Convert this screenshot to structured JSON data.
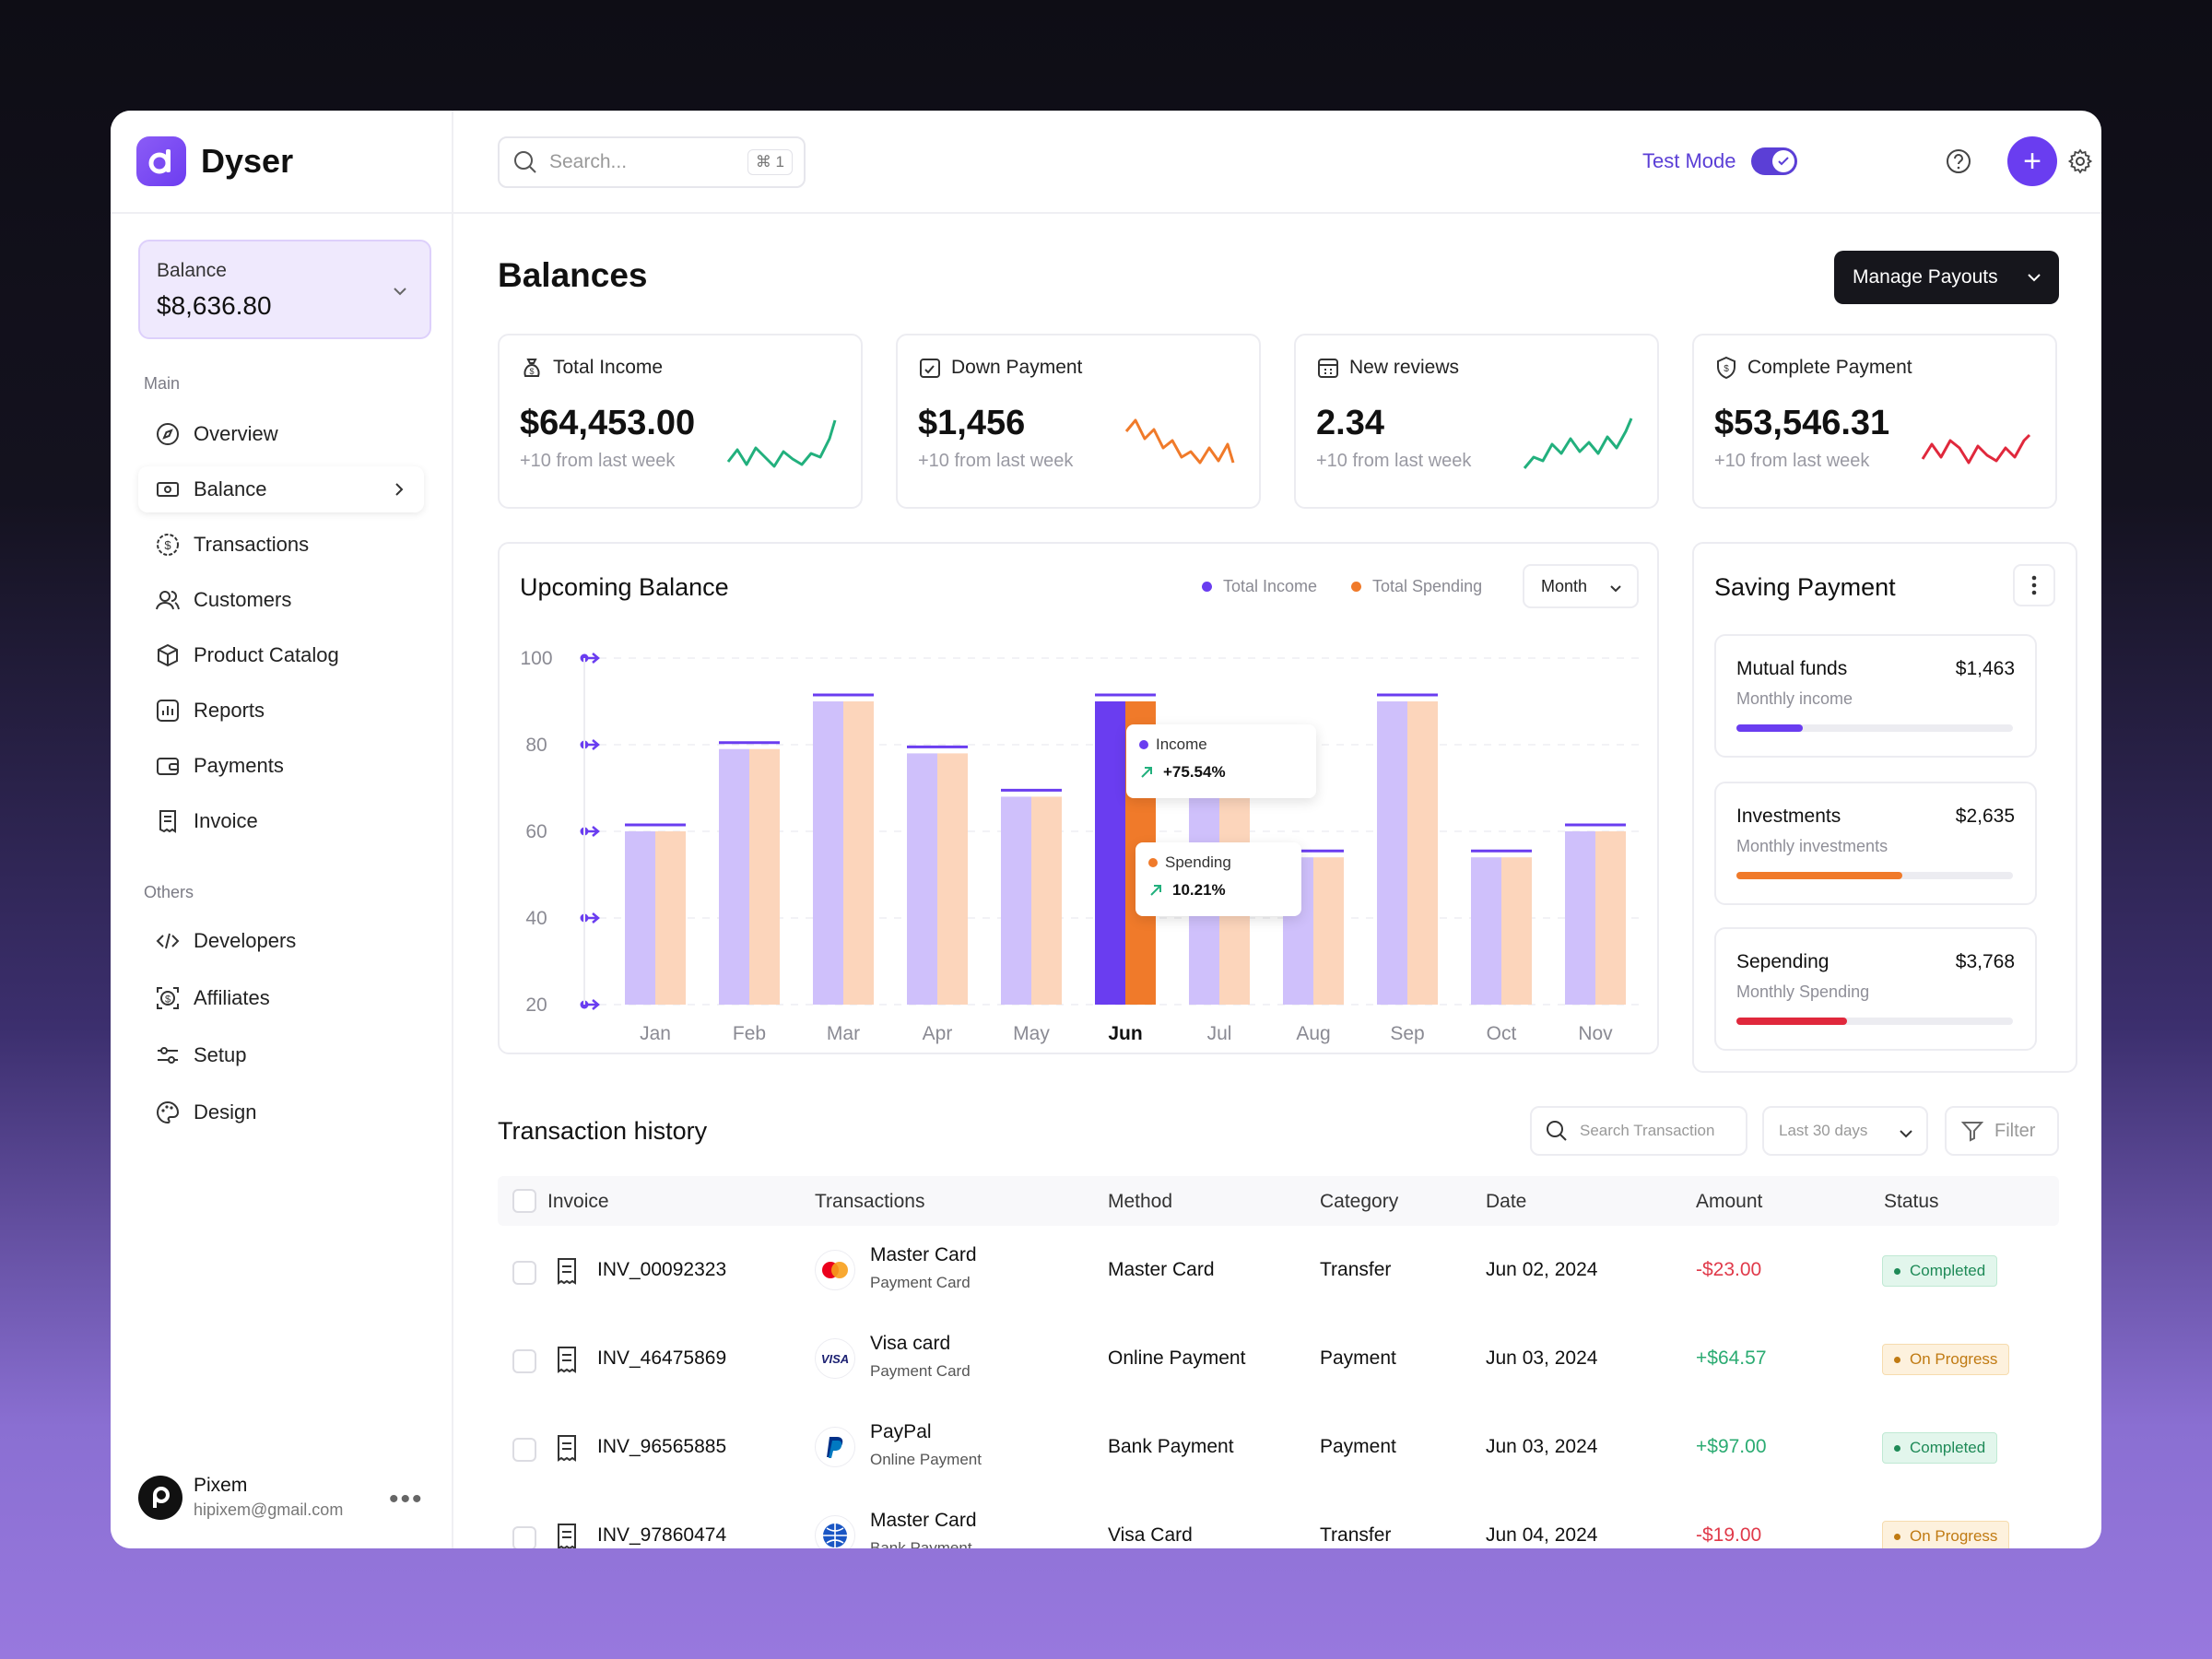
{
  "app": {
    "name": "Dyser"
  },
  "sidebar": {
    "balance_label": "Balance",
    "balance_value": "$8,636.80",
    "main_label": "Main",
    "others_label": "Others",
    "main_items": [
      {
        "label": "Overview"
      },
      {
        "label": "Balance"
      },
      {
        "label": "Transactions"
      },
      {
        "label": "Customers"
      },
      {
        "label": "Product Catalog"
      },
      {
        "label": "Reports"
      },
      {
        "label": "Payments"
      },
      {
        "label": "Invoice"
      }
    ],
    "other_items": [
      {
        "label": "Developers"
      },
      {
        "label": "Affiliates"
      },
      {
        "label": "Setup"
      },
      {
        "label": "Design"
      }
    ],
    "user": {
      "name": "Pixem",
      "email": "hipixem@gmail.com"
    }
  },
  "topbar": {
    "search_placeholder": "Search...",
    "search_shortcut": "⌘ 1",
    "test_mode_label": "Test Mode",
    "test_mode_on": true
  },
  "page": {
    "title": "Balances",
    "manage_payouts": "Manage Payouts"
  },
  "stats": [
    {
      "label": "Total Income",
      "value": "$64,453.00",
      "sub": "+10 from last week",
      "color": "#22b07d"
    },
    {
      "label": "Down Payment",
      "value": "$1,456",
      "sub": "+10 from last week",
      "color": "#f07a2a"
    },
    {
      "label": "New reviews",
      "value": "2.34",
      "sub": "+10 from last week",
      "color": "#22b07d"
    },
    {
      "label": "Complete Payment",
      "value": "$53,546.31",
      "sub": "+10 from last week",
      "color": "#e0283c"
    }
  ],
  "upcoming": {
    "title": "Upcoming Balance",
    "legend_income": "Total Income",
    "legend_spending": "Total Spending",
    "period": "Month",
    "tooltip_income_label": "Income",
    "tooltip_income_value": "+75.54%",
    "tooltip_spending_label": "Spending",
    "tooltip_spending_value": "10.21%"
  },
  "chart_data": {
    "type": "bar",
    "categories": [
      "Jan",
      "Feb",
      "Mar",
      "Apr",
      "May",
      "Jun",
      "Jul",
      "Aug",
      "Sep",
      "Oct",
      "Nov"
    ],
    "series": [
      {
        "name": "Total Income",
        "values": [
          60,
          79,
          90,
          78,
          68,
          90,
          74,
          54,
          90,
          54,
          60
        ]
      },
      {
        "name": "Total Spending",
        "values": [
          60,
          79,
          90,
          78,
          68,
          90,
          74,
          54,
          90,
          54,
          60
        ]
      }
    ],
    "highlight": "Jun",
    "yticks": [
      100,
      80,
      60,
      40,
      20
    ],
    "ylim": [
      20,
      100
    ],
    "colors": {
      "income": "#cfc0fb",
      "spending": "#fcd5bb",
      "income_active": "#6a3df0",
      "spending_active": "#f07a2a",
      "cap": "#6a3df0"
    },
    "legend": "top-right"
  },
  "saving": {
    "title": "Saving Payment",
    "items": [
      {
        "name": "Mutual funds",
        "amount": "$1,463",
        "sub": "Monthly income",
        "progress": 0.24,
        "color": "#6a3df0"
      },
      {
        "name": "Investments",
        "amount": "$2,635",
        "sub": "Monthly investments",
        "progress": 0.6,
        "color": "#f07a2a"
      },
      {
        "name": "Sepending",
        "amount": "$3,768",
        "sub": "Monthly Spending",
        "progress": 0.4,
        "color": "#e0283c"
      }
    ]
  },
  "transactions": {
    "title": "Transaction history",
    "search_placeholder": "Search Transaction",
    "range": "Last 30 days",
    "filter": "Filter",
    "columns": [
      "Invoice",
      "Transactions",
      "Method",
      "Category",
      "Date",
      "Amount",
      "Status"
    ],
    "rows": [
      {
        "invoice": "INV_00092323",
        "name": "Master Card",
        "sub": "Payment Card",
        "icon": "mastercard-logo",
        "method": "Master Card",
        "category": "Transfer",
        "date": "Jun 02, 2024",
        "amount": "-$23.00",
        "status": "Completed"
      },
      {
        "invoice": "INV_46475869",
        "name": "Visa card",
        "sub": "Payment Card",
        "icon": "visa-logo",
        "method": "Online Payment",
        "category": "Payment",
        "date": "Jun 03, 2024",
        "amount": "+$64.57",
        "status": "On Progress"
      },
      {
        "invoice": "INV_96565885",
        "name": "PayPal",
        "sub": "Online Payment",
        "icon": "paypal-logo",
        "method": "Bank Payment",
        "category": "Payment",
        "date": "Jun 03, 2024",
        "amount": "+$97.00",
        "status": "Completed"
      },
      {
        "invoice": "INV_97860474",
        "name": "Master Card",
        "sub": "Bank Payment",
        "icon": "globe-logo",
        "method": "Visa Card",
        "category": "Transfer",
        "date": "Jun 04, 2024",
        "amount": "-$19.00",
        "status": "On Progress"
      }
    ],
    "visa_text": "VISA"
  }
}
